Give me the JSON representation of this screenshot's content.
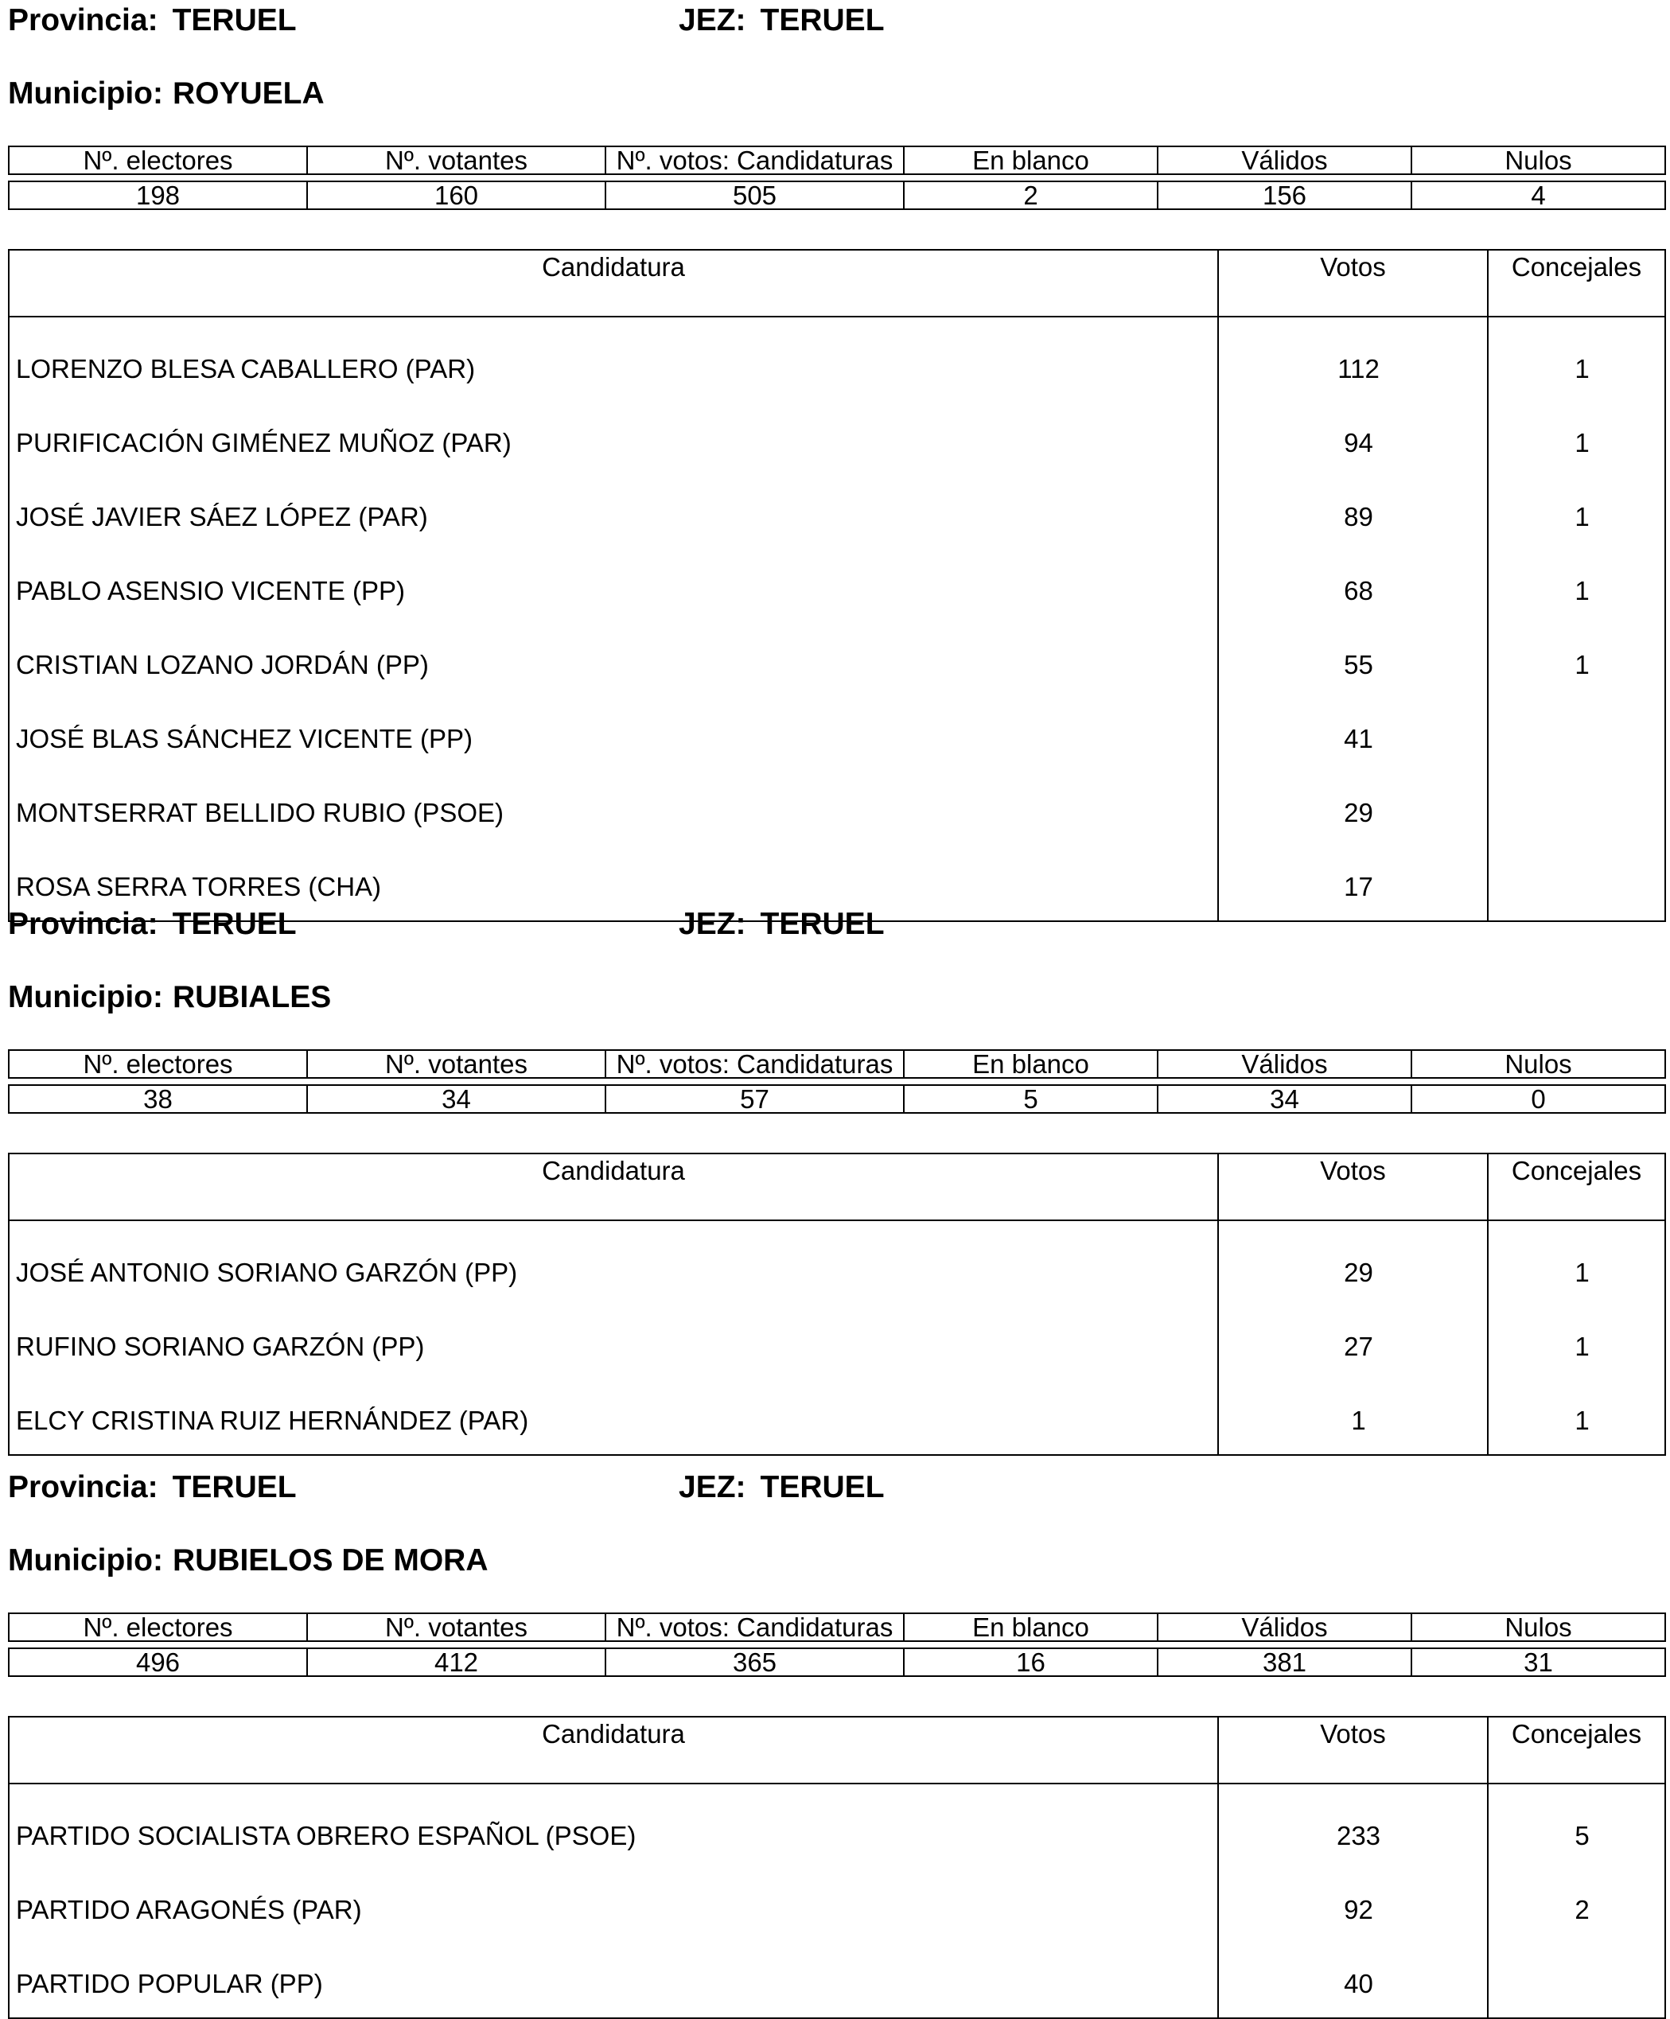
{
  "labels": {
    "provincia": "Provincia:",
    "jez": "JEZ:",
    "municipio": "Municipio:",
    "stats_headers": [
      "Nº. electores",
      "Nº. votantes",
      "Nº. votos: Candidaturas",
      "En blanco",
      "Válidos",
      "Nulos"
    ],
    "cand_headers": [
      "Candidatura",
      "Votos",
      "Concejales"
    ]
  },
  "sections": [
    {
      "provincia": "TERUEL",
      "jez": "TERUEL",
      "municipio": "ROYUELA",
      "stats": [
        "198",
        "160",
        "505",
        "2",
        "156",
        "4"
      ],
      "candidates": [
        {
          "name": "LORENZO BLESA CABALLERO (PAR)",
          "votos": "112",
          "concejales": "1"
        },
        {
          "name": "PURIFICACIÓN GIMÉNEZ MUÑOZ (PAR)",
          "votos": "94",
          "concejales": "1"
        },
        {
          "name": "JOSÉ JAVIER SÁEZ LÓPEZ (PAR)",
          "votos": "89",
          "concejales": "1"
        },
        {
          "name": "PABLO ASENSIO VICENTE (PP)",
          "votos": "68",
          "concejales": "1"
        },
        {
          "name": "CRISTIAN LOZANO JORDÁN (PP)",
          "votos": "55",
          "concejales": "1"
        },
        {
          "name": "JOSÉ BLAS SÁNCHEZ VICENTE (PP)",
          "votos": "41",
          "concejales": ""
        },
        {
          "name": "MONTSERRAT BELLIDO RUBIO (PSOE)",
          "votos": "29",
          "concejales": ""
        },
        {
          "name": "ROSA SERRA TORRES (CHA)",
          "votos": "17",
          "concejales": ""
        }
      ]
    },
    {
      "provincia": "TERUEL",
      "jez": "TERUEL",
      "municipio": "RUBIALES",
      "stats": [
        "38",
        "34",
        "57",
        "5",
        "34",
        "0"
      ],
      "candidates": [
        {
          "name": "JOSÉ ANTONIO SORIANO GARZÓN (PP)",
          "votos": "29",
          "concejales": "1"
        },
        {
          "name": "RUFINO SORIANO GARZÓN (PP)",
          "votos": "27",
          "concejales": "1"
        },
        {
          "name": "ELCY CRISTINA RUIZ HERNÁNDEZ (PAR)",
          "votos": "1",
          "concejales": "1"
        }
      ]
    },
    {
      "provincia": "TERUEL",
      "jez": "TERUEL",
      "municipio": "RUBIELOS DE MORA",
      "stats": [
        "496",
        "412",
        "365",
        "16",
        "381",
        "31"
      ],
      "candidates": [
        {
          "name": "PARTIDO SOCIALISTA OBRERO ESPAÑOL (PSOE)",
          "votos": "233",
          "concejales": "5"
        },
        {
          "name": "PARTIDO ARAGONÉS (PAR)",
          "votos": "92",
          "concejales": "2"
        },
        {
          "name": "PARTIDO POPULAR (PP)",
          "votos": "40",
          "concejales": ""
        }
      ]
    }
  ]
}
